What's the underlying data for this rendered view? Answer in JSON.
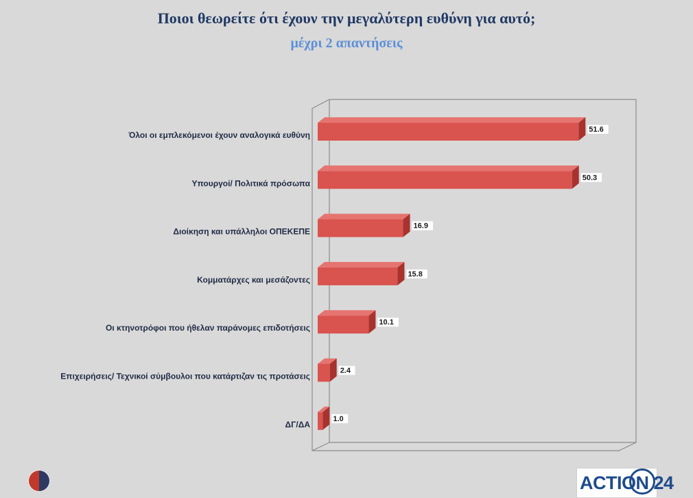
{
  "header": {
    "title": "Ποιοι θεωρείτε ότι έχουν την μεγαλύτερη ευθύνη για αυτό;",
    "subtitle": "μέχρι 2 απαντήσεις"
  },
  "branding": {
    "right_logo_text": "ACTION 24"
  },
  "colors": {
    "bar_front": "#d9534f",
    "bar_top": "#e57470",
    "bar_side": "#a8322e",
    "background": "#d9d9d9"
  },
  "chart_data": {
    "type": "bar",
    "orientation": "horizontal",
    "categories": [
      "Όλοι οι εμπλεκόμενοι έχουν αναλογικά ευθύνη",
      "Υπουργοί/ Πολιτικά πρόσωπα",
      "Διοίκηση και υπάλληλοι ΟΠΕΚΕΠΕ",
      "Κομματάρχες και μεσάζοντες",
      "Οι κτηνοτρόφοι που ήθελαν παράνομες επιδοτήσεις",
      "Επιχειρήσεις/ Τεχνικοί σύμβουλοι που κατάρτιζαν τις προτάσεις",
      "ΔΓ/ΔΑ"
    ],
    "values": [
      51.6,
      50.3,
      16.9,
      15.8,
      10.1,
      2.4,
      1.0
    ],
    "value_labels": [
      "51.6",
      "50.3",
      "16.9",
      "15.8",
      "10.1",
      "2.4",
      "1.0"
    ],
    "title": "Ποιοι θεωρείτε ότι έχουν την μεγαλύτερη ευθύνη για αυτό;",
    "subtitle": "μέχρι 2 απαντήσεις",
    "xlabel": "",
    "ylabel": "",
    "xlim": [
      0,
      60
    ],
    "grid": false,
    "legend": "none",
    "style": "3d"
  }
}
